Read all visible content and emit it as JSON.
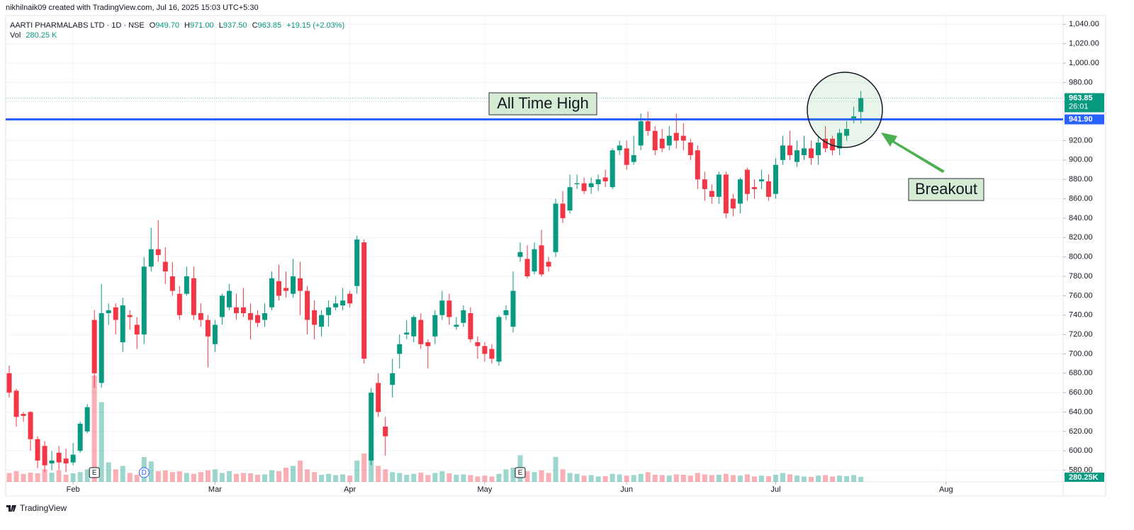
{
  "header": "nikhilnaik09 created with TradingView.com, Jul 16, 2025 15:03 UTC+5:30",
  "footer": "TradingView",
  "chart_data": {
    "type": "candlestick",
    "legend": {
      "symbol": "AARTI PHARMALABS LTD · 1D · NSE",
      "o_label": "O",
      "open": "949.70",
      "h_label": "H",
      "high": "971.00",
      "l_label": "L",
      "low": "937.50",
      "c_label": "C",
      "close": "963.85",
      "change": "+19.15 (+2.03%)",
      "vol_label": "Vol",
      "vol": "280.25 K"
    },
    "up_color": "#089981",
    "down_color": "#f23645",
    "candles": {
      "open": [
        680,
        662,
        638,
        640,
        612,
        605,
        587,
        598,
        592,
        588,
        600,
        620,
        735,
        670,
        742,
        748,
        712,
        740,
        730,
        720,
        790,
        808,
        795,
        780,
        762,
        762,
        778,
        742,
        735,
        710,
        738,
        748,
        748,
        748,
        742,
        740,
        735,
        748,
        775,
        768,
        762,
        778,
        765,
        745,
        728,
        740,
        748,
        750,
        762,
        770,
        815,
        590,
        670,
        625,
        668,
        700,
        720,
        718,
        735,
        712,
        718,
        740,
        755,
        728,
        732,
        742,
        712,
        708,
        705,
        692,
        740,
        728,
        800,
        798,
        785,
        812,
        795,
        805,
        855,
        848,
        875,
        876,
        872,
        875,
        882,
        872,
        910,
        912,
        898,
        915,
        940,
        930,
        922,
        915,
        928,
        925,
        918,
        910,
        880,
        868,
        862,
        885,
        860,
        855,
        890,
        872,
        878,
        878,
        865,
        900,
        915,
        898,
        905,
        912,
        905,
        922,
        922,
        912,
        925,
        942,
        949.7
      ],
      "high": [
        688,
        664,
        640,
        641,
        615,
        610,
        600,
        605,
        602,
        608,
        630,
        648,
        745,
        772,
        752,
        752,
        758,
        745,
        738,
        800,
        830,
        838,
        810,
        795,
        770,
        790,
        790,
        752,
        740,
        735,
        762,
        772,
        762,
        768,
        752,
        745,
        752,
        785,
        792,
        785,
        798,
        795,
        770,
        755,
        745,
        755,
        760,
        768,
        765,
        822,
        818,
        665,
        680,
        635,
        695,
        720,
        735,
        740,
        742,
        715,
        745,
        765,
        762,
        738,
        750,
        748,
        718,
        712,
        710,
        740,
        750,
        785,
        815,
        812,
        815,
        828,
        800,
        860,
        868,
        885,
        885,
        882,
        882,
        885,
        890,
        912,
        920,
        920,
        925,
        948,
        950,
        935,
        932,
        935,
        948,
        938,
        922,
        915,
        888,
        875,
        888,
        888,
        865,
        882,
        892,
        880,
        890,
        885,
        902,
        925,
        930,
        920,
        925,
        920,
        925,
        935,
        925,
        932,
        940,
        955,
        971
      ],
      "low": [
        655,
        625,
        630,
        600,
        582,
        578,
        580,
        580,
        578,
        585,
        598,
        618,
        665,
        665,
        730,
        720,
        702,
        725,
        705,
        710,
        785,
        795,
        772,
        760,
        735,
        760,
        735,
        728,
        686,
        702,
        730,
        745,
        735,
        738,
        715,
        728,
        728,
        745,
        755,
        758,
        758,
        740,
        720,
        715,
        718,
        728,
        745,
        745,
        748,
        762,
        690,
        585,
        635,
        595,
        655,
        685,
        715,
        712,
        705,
        685,
        710,
        735,
        730,
        725,
        728,
        712,
        695,
        692,
        690,
        688,
        735,
        722,
        795,
        778,
        782,
        780,
        785,
        800,
        835,
        845,
        870,
        865,
        865,
        868,
        872,
        870,
        905,
        890,
        895,
        910,
        925,
        905,
        908,
        910,
        912,
        910,
        900,
        870,
        858,
        855,
        855,
        840,
        842,
        845,
        858,
        860,
        870,
        858,
        860,
        895,
        900,
        893,
        900,
        895,
        895,
        908,
        905,
        905,
        920,
        938,
        937.5
      ],
      "close": [
        660,
        635,
        636,
        612,
        590,
        585,
        590,
        588,
        587,
        596,
        628,
        645,
        680,
        742,
        745,
        735,
        750,
        738,
        720,
        790,
        808,
        802,
        785,
        765,
        740,
        780,
        740,
        735,
        718,
        730,
        760,
        765,
        742,
        742,
        735,
        732,
        742,
        778,
        760,
        765,
        780,
        765,
        735,
        730,
        740,
        748,
        752,
        755,
        752,
        818,
        695,
        660,
        640,
        615,
        680,
        710,
        722,
        738,
        710,
        708,
        740,
        755,
        738,
        730,
        745,
        715,
        708,
        700,
        695,
        738,
        745,
        765,
        805,
        780,
        808,
        782,
        790,
        855,
        840,
        872,
        876,
        868,
        876,
        880,
        878,
        910,
        915,
        895,
        905,
        940,
        930,
        910,
        912,
        925,
        920,
        920,
        905,
        880,
        870,
        862,
        885,
        845,
        850,
        880,
        865,
        870,
        880,
        862,
        895,
        915,
        905,
        910,
        912,
        902,
        918,
        912,
        910,
        928,
        932,
        945,
        963.85
      ],
      "volume": [
        500000,
        600000,
        450000,
        520000,
        480000,
        700000,
        520000,
        650000,
        400000,
        480000,
        550000,
        700000,
        6000000,
        4500000,
        1100000,
        700000,
        900000,
        500000,
        400000,
        1400000,
        1150000,
        600000,
        650000,
        550000,
        600000,
        500000,
        450000,
        550000,
        650000,
        700000,
        500000,
        600000,
        450000,
        500000,
        480000,
        400000,
        420000,
        650000,
        600000,
        800000,
        900000,
        1200000,
        700000,
        550000,
        400000,
        450000,
        380000,
        420000,
        350000,
        1200000,
        1600000,
        1500000,
        900000,
        700000,
        550000,
        500000,
        400000,
        450000,
        520000,
        380000,
        500000,
        600000,
        480000,
        400000,
        420000,
        380000,
        300000,
        350000,
        300000,
        450000,
        700000,
        800000,
        1500000,
        600000,
        550000,
        650000,
        500000,
        1400000,
        700000,
        500000,
        450000,
        350000,
        380000,
        300000,
        320000,
        450000,
        420000,
        350000,
        380000,
        450000,
        550000,
        400000,
        380000,
        350000,
        420000,
        400000,
        350000,
        500000,
        420000,
        380000,
        400000,
        450000,
        380000,
        350000,
        420000,
        300000,
        350000,
        320000,
        400000,
        500000,
        420000,
        350000,
        300000,
        280000,
        350000,
        380000,
        300000,
        350000,
        320000,
        380000,
        280250
      ]
    },
    "xlim": [
      -0.5,
      148.5
    ],
    "xticks": [
      {
        "value": 9,
        "label": "Feb"
      },
      {
        "value": 29,
        "label": "Mar"
      },
      {
        "value": 48,
        "label": "Apr"
      },
      {
        "value": 67,
        "label": "May"
      },
      {
        "value": 87,
        "label": "Jun"
      },
      {
        "value": 108,
        "label": "Jul"
      },
      {
        "value": 132,
        "label": "Aug"
      }
    ],
    "ylim": [
      568,
      1049
    ],
    "yticks": [
      {
        "value": 580,
        "label": "580.00"
      },
      {
        "value": 600,
        "label": "600.00"
      },
      {
        "value": 620,
        "label": "620.00"
      },
      {
        "value": 640,
        "label": "640.00"
      },
      {
        "value": 660,
        "label": "660.00"
      },
      {
        "value": 680,
        "label": "680.00"
      },
      {
        "value": 700,
        "label": "700.00"
      },
      {
        "value": 720,
        "label": "720.00"
      },
      {
        "value": 740,
        "label": "740.00"
      },
      {
        "value": 760,
        "label": "760.00"
      },
      {
        "value": 780,
        "label": "780.00"
      },
      {
        "value": 800,
        "label": "800.00"
      },
      {
        "value": 820,
        "label": "820.00"
      },
      {
        "value": 840,
        "label": "840.00"
      },
      {
        "value": 860,
        "label": "860.00"
      },
      {
        "value": 880,
        "label": "880.00"
      },
      {
        "value": 900,
        "label": "900.00"
      },
      {
        "value": 920,
        "label": "920.00"
      },
      {
        "value": 940,
        "label": "940.00"
      },
      {
        "value": 960,
        "label": "960.00"
      },
      {
        "value": 980,
        "label": "980.00"
      },
      {
        "value": 1000,
        "label": "1,000.00"
      },
      {
        "value": 1020,
        "label": "1,020.00"
      },
      {
        "value": 1040,
        "label": "1,040.00"
      }
    ],
    "grid": true,
    "hline": {
      "value": 941.9,
      "label": "941.90",
      "color": "#2962ff"
    },
    "last_price": {
      "value": 963.85,
      "label": "963.85",
      "countdown": "26:01"
    },
    "volume_label": "280.25K",
    "events": [
      "E",
      "D",
      "E"
    ],
    "annotations": {
      "ath": "All Time High",
      "breakout": "Breakout"
    }
  }
}
